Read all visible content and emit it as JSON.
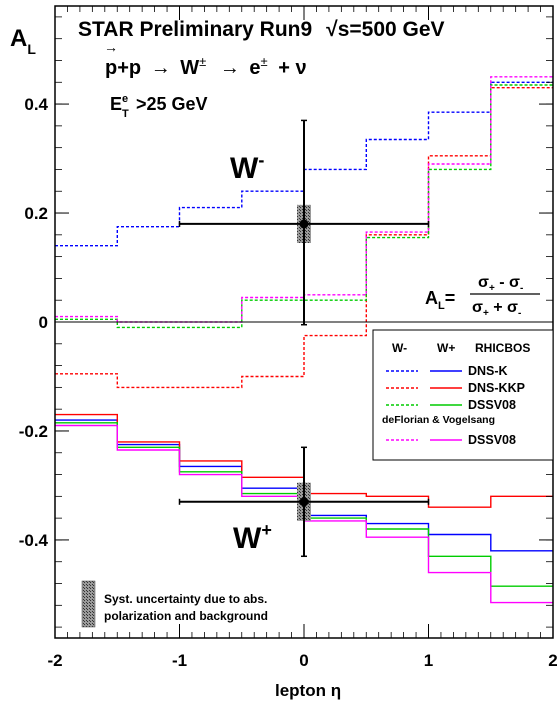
{
  "chart_data": {
    "type": "line",
    "title": "STAR Preliminary Run9",
    "title_energy": "√s=500 GeV",
    "reaction": {
      "initial": "p+p",
      "arrow1": "→",
      "boson": "W",
      "boson_sup": "±",
      "arrow2": "→",
      "lepton": "e",
      "lepton_sup": "±",
      "rest": "+ ν"
    },
    "cut": {
      "main": "E",
      "sup": "e",
      "sub": "T",
      "rest": ">25 GeV"
    },
    "ylabel": {
      "main": "A",
      "sub": "L"
    },
    "xlabel": "lepton η",
    "xlim": [
      -2,
      2
    ],
    "ylim": [
      -0.58,
      0.58
    ],
    "x_ticks": [
      {
        "v": -2,
        "label": "-2"
      },
      {
        "v": -1,
        "label": "-1"
      },
      {
        "v": 0,
        "label": "0"
      },
      {
        "v": 1,
        "label": "1"
      },
      {
        "v": 2,
        "label": "2"
      }
    ],
    "y_ticks": [
      {
        "v": -0.4,
        "label": "-0.4"
      },
      {
        "v": -0.2,
        "label": "-0.2"
      },
      {
        "v": 0,
        "label": "0"
      },
      {
        "v": 0.2,
        "label": "0.2"
      },
      {
        "v": 0.4,
        "label": "0.4"
      }
    ],
    "edges": [
      -2,
      -1.5,
      -1,
      -0.5,
      0,
      0.5,
      1,
      1.5,
      2
    ],
    "theory": [
      {
        "name": "DNS-K",
        "boson": "W-",
        "style": "dashed",
        "color": "#0000ff",
        "values": [
          0.14,
          0.175,
          0.21,
          0.24,
          0.28,
          0.335,
          0.385,
          0.44
        ]
      },
      {
        "name": "DNS-KKP",
        "boson": "W-",
        "style": "dashed",
        "color": "#ff0000",
        "values": [
          -0.095,
          -0.12,
          -0.12,
          -0.1,
          -0.025,
          0.16,
          0.305,
          0.43
        ]
      },
      {
        "name": "DSSV08",
        "boson": "W-",
        "style": "dashed",
        "color": "#00cc00",
        "values": [
          0.005,
          -0.01,
          -0.01,
          0.04,
          0.04,
          0.155,
          0.28,
          0.435
        ]
      },
      {
        "name": "DSSV08 (deFlorian & Vogelsang)",
        "boson": "W-",
        "style": "dashed",
        "color": "#ff00ff",
        "values": [
          0.01,
          0.0,
          0.0,
          0.045,
          0.05,
          0.165,
          0.29,
          0.45
        ]
      },
      {
        "name": "DNS-K",
        "boson": "W+",
        "style": "solid",
        "color": "#0000ff",
        "values": [
          -0.18,
          -0.225,
          -0.265,
          -0.305,
          -0.355,
          -0.37,
          -0.39,
          -0.42
        ]
      },
      {
        "name": "DNS-KKP",
        "boson": "W+",
        "style": "solid",
        "color": "#ff0000",
        "values": [
          -0.17,
          -0.22,
          -0.255,
          -0.285,
          -0.315,
          -0.32,
          -0.34,
          -0.32
        ]
      },
      {
        "name": "DSSV08",
        "boson": "W+",
        "style": "solid",
        "color": "#00cc00",
        "values": [
          -0.185,
          -0.23,
          -0.275,
          -0.315,
          -0.36,
          -0.38,
          -0.43,
          -0.485
        ]
      },
      {
        "name": "DSSV08 (deFlorian & Vogelsang)",
        "boson": "W+",
        "style": "solid",
        "color": "#ff00ff",
        "values": [
          -0.19,
          -0.235,
          -0.28,
          -0.32,
          -0.365,
          -0.395,
          -0.46,
          -0.515
        ]
      }
    ],
    "data_points": [
      {
        "label": "W",
        "sup": "-",
        "x": 0,
        "y": 0.18,
        "xerr": 1,
        "yerr_lo": 0.185,
        "yerr_hi": 0.19,
        "sys": 0.035
      },
      {
        "label": "W",
        "sup": "+",
        "x": 0,
        "y": -0.33,
        "xerr": 1,
        "yerr_lo": 0.1,
        "yerr_hi": 0.1,
        "sys": 0.035
      }
    ],
    "formula": {
      "lhs_main": "A",
      "lhs_sub": "L",
      "eq": "=",
      "num_a": "σ",
      "num_a_sub": "+",
      "num_op": " - ",
      "num_b": "σ",
      "num_b_sub": "-",
      "den_a": "σ",
      "den_a_sub": "+",
      "den_op": " + ",
      "den_b": "σ",
      "den_b_sub": "-"
    },
    "legend": {
      "placement": "right",
      "col_wm": "W-",
      "col_wp": "W+",
      "col_model": "RHICBOS",
      "rows": [
        {
          "label": "DNS-K",
          "color": "#0000ff"
        },
        {
          "label": "DNS-KKP",
          "color": "#ff0000"
        },
        {
          "label": "DSSV08",
          "color": "#00cc00"
        }
      ],
      "subheader": "deFlorian & Vogelsang",
      "rows2": [
        {
          "label": "DSSV08",
          "color": "#ff00ff"
        }
      ]
    },
    "syst_note": {
      "line1": "Syst. uncertainty due to abs.",
      "line2": "polarization and background"
    }
  }
}
